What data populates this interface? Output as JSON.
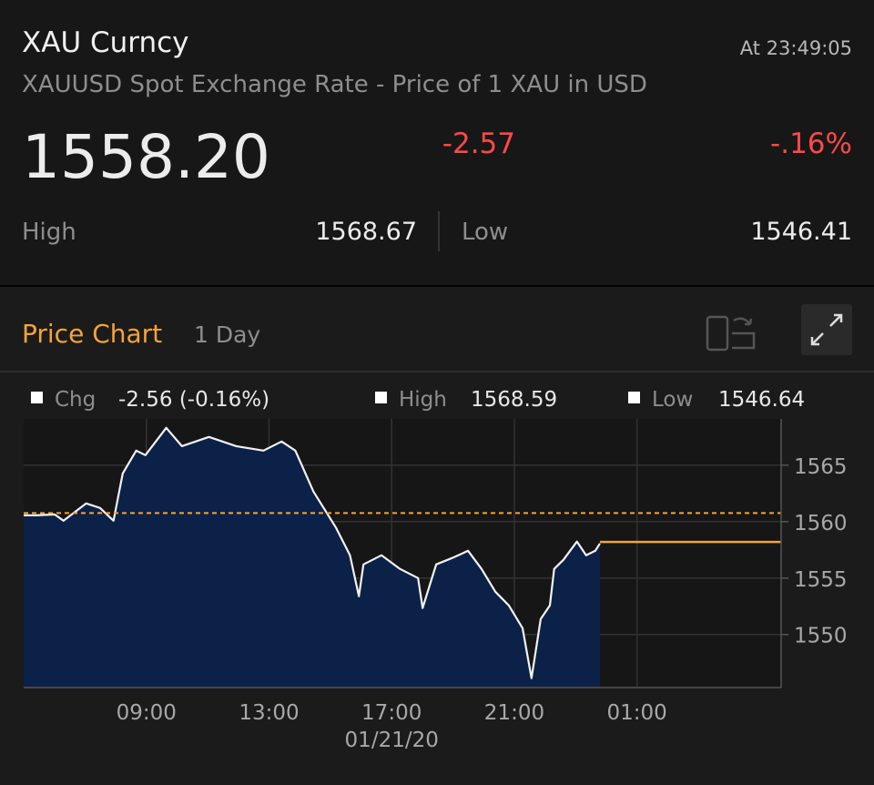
{
  "header": {
    "title": "XAU Curncy",
    "time": "At 23:49:05",
    "subtitle": "XAUUSD Spot Exchange Rate - Price of 1 XAU in USD",
    "price": "1558.20",
    "change": "-2.57",
    "change_pct": "-.16%",
    "high_label": "High",
    "high": "1568.67",
    "low_label": "Low",
    "low": "1546.41"
  },
  "chart_panel": {
    "title": "Price Chart",
    "range": "1 Day",
    "legend": [
      {
        "label": "Chg",
        "value": "-2.56 (-0.16%)"
      },
      {
        "label": "High",
        "value": "1568.59"
      },
      {
        "label": "Low",
        "value": "1546.64"
      }
    ]
  },
  "chart_data": {
    "type": "area",
    "x": [
      5.0,
      5.41,
      6.01,
      6.3,
      7.04,
      7.49,
      7.93,
      8.23,
      8.67,
      8.97,
      9.65,
      10.16,
      11.04,
      11.93,
      12.82,
      13.41,
      13.86,
      14.45,
      15.19,
      15.64,
      15.93,
      16.08,
      16.67,
      17.27,
      17.86,
      18.01,
      18.45,
      19.04,
      19.49,
      19.93,
      20.38,
      20.82,
      21.27,
      21.56,
      21.86,
      22.16,
      22.3,
      22.6,
      23.04,
      23.34,
      23.64,
      23.79
    ],
    "values": [
      1560.56,
      1560.56,
      1560.64,
      1560.08,
      1561.61,
      1561.21,
      1560.08,
      1564.27,
      1566.29,
      1565.89,
      1568.31,
      1566.69,
      1567.5,
      1566.69,
      1566.29,
      1567.1,
      1566.29,
      1562.66,
      1559.44,
      1557.02,
      1553.39,
      1556.21,
      1557.02,
      1555.81,
      1555.0,
      1552.34,
      1556.21,
      1556.85,
      1557.42,
      1555.81,
      1553.79,
      1552.58,
      1550.56,
      1546.13,
      1551.37,
      1552.58,
      1555.81,
      1556.61,
      1558.23,
      1557.02,
      1557.42,
      1558.06
    ],
    "xlim": [
      5,
      29.7
    ],
    "ylim": [
      1545.3,
      1569.1
    ],
    "xticks": [
      {
        "value": 9,
        "label": "09:00"
      },
      {
        "value": 13,
        "label": "13:00"
      },
      {
        "value": 17,
        "label": "17:00"
      },
      {
        "value": 21,
        "label": "21:00"
      },
      {
        "value": 25,
        "label": "01:00"
      }
    ],
    "date_label": "01/21/20",
    "yticks": [
      1550,
      1555,
      1560,
      1565
    ],
    "previous_close": 1560.76,
    "last_price": 1558.2,
    "color": "#f2f2f2",
    "fill": "#0c2148",
    "reference_color": "#f5a33a",
    "grid": true
  }
}
